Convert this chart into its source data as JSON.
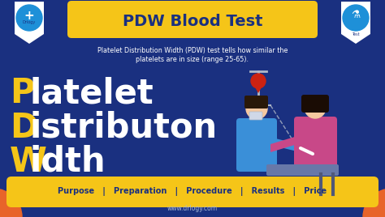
{
  "bg_color": "#1a3080",
  "title": "PDW Blood Test",
  "title_bg": "#f5c518",
  "subtitle_line1": "Platelet Distribution Width (PDW) test tells how similar the",
  "subtitle_line2": "platelets are in size (range 25-65).",
  "pdw_p": "P",
  "pdw_line1": "latelet",
  "pdw_d": "D",
  "pdw_line2": "istributon",
  "pdw_w": "W",
  "pdw_line3": "idth",
  "yellow": "#f5c518",
  "white": "#ffffff",
  "footer_text": "Purpose   |   Preparation   |   Procedure   |   Results   |   Price",
  "website": "www.drlogy.com",
  "accent_orange": "#e8642a",
  "logo_bg": "#1e90d8",
  "logo_text_color": "#ffffff",
  "dark_blue_text": "#1a3080",
  "doctor_blue": "#3a8fd8",
  "patient_pink": "#c84888",
  "skin_color": "#f5c8a0",
  "dark_skin": "#7a4520",
  "table_color": "#6878a8",
  "iv_red": "#cc2211",
  "iv_pole": "#b0b8c8"
}
